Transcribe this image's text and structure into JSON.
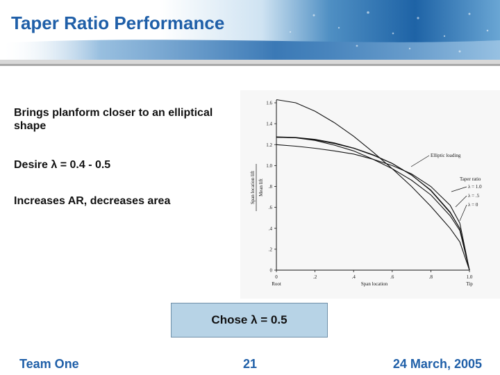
{
  "slide": {
    "title": "Taper Ratio Performance",
    "bullets": [
      "Brings planform closer to an elliptical shape",
      "Desire λ = 0.4 - 0.5",
      "Increases AR, decreases area"
    ],
    "callout": "Chose λ = 0.5"
  },
  "footer": {
    "left": "Team One",
    "center": "21",
    "right": "24 March, 2005"
  },
  "colors": {
    "title": "#1f5fa8",
    "callout_bg": "#b7d3e6"
  },
  "chart_data": {
    "type": "line",
    "ylabel_top": "Span location lift",
    "ylabel_bottom": "Mean lift",
    "xlabel": "Span location",
    "x_root_label": "Root",
    "x_tip_label": "Tip",
    "yticks": [
      "0",
      ".2",
      ".4",
      ".6",
      ".8",
      "1.0",
      "1.2",
      "1.4",
      "1.6"
    ],
    "xticks": [
      "0",
      ".2",
      ".4",
      ".6",
      ".8",
      "1.0"
    ],
    "xlim": [
      0,
      1
    ],
    "ylim": [
      0,
      1.6
    ],
    "annotations": {
      "elliptic": "Elliptic loading",
      "legend_title": "Taper ratio",
      "taper_labels": [
        "λ = 1.0",
        "λ = .5",
        "λ = 0"
      ]
    },
    "series": [
      {
        "x": [
          0,
          0.1,
          0.2,
          0.3,
          0.4,
          0.5,
          0.6,
          0.7,
          0.8,
          0.9,
          0.95,
          1.0
        ],
        "values": [
          1.27,
          1.267,
          1.245,
          1.21,
          1.165,
          1.1,
          1.02,
          0.91,
          0.76,
          0.55,
          0.4,
          0
        ]
      },
      {
        "x": [
          0,
          0.1,
          0.2,
          0.3,
          0.4,
          0.5,
          0.6,
          0.7,
          0.8,
          0.9,
          0.95,
          1.0
        ],
        "values": [
          1.27,
          1.265,
          1.24,
          1.195,
          1.14,
          1.06,
          0.97,
          0.86,
          0.72,
          0.52,
          0.38,
          0
        ]
      },
      {
        "x": [
          0,
          0.1,
          0.2,
          0.3,
          0.4,
          0.5,
          0.6,
          0.7,
          0.8,
          0.9,
          0.95,
          1.0
        ],
        "values": [
          1.2,
          1.185,
          1.165,
          1.14,
          1.11,
          1.06,
          1.0,
          0.92,
          0.8,
          0.62,
          0.45,
          0
        ]
      },
      {
        "x": [
          0,
          0.1,
          0.2,
          0.3,
          0.4,
          0.5,
          0.6,
          0.7,
          0.8,
          0.9,
          0.95,
          1.0
        ],
        "values": [
          1.63,
          1.6,
          1.52,
          1.41,
          1.28,
          1.13,
          0.97,
          0.8,
          0.61,
          0.4,
          0.27,
          0
        ]
      },
      {
        "x": [
          0,
          0.1,
          0.2,
          0.3,
          0.4,
          0.5,
          0.6,
          0.7,
          0.8,
          0.9,
          0.95,
          1.0
        ],
        "values": [
          1.275,
          1.269,
          1.25,
          1.216,
          1.167,
          1.104,
          1.02,
          0.909,
          0.765,
          0.556,
          0.398,
          0
        ]
      }
    ]
  }
}
